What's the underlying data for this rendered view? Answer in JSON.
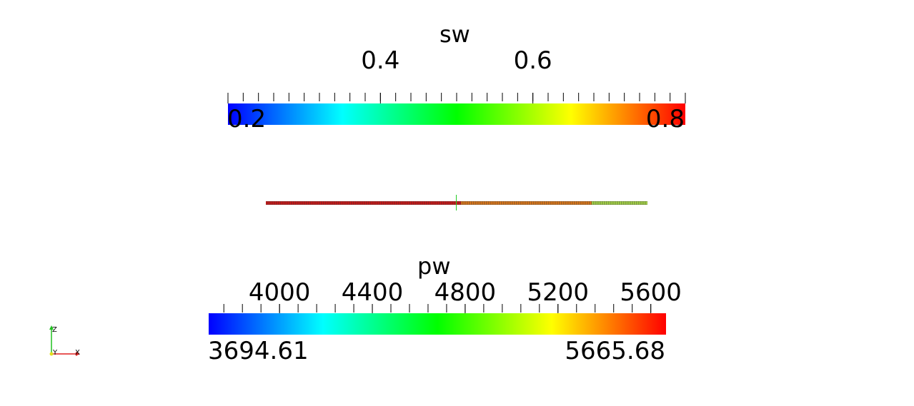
{
  "sw_legend": {
    "title": "sw",
    "tick_labels": [
      "0.4",
      "0.6"
    ],
    "range_min": "0.2",
    "range_max": "0.8",
    "colormap": [
      "#0000ff",
      "#00ffff",
      "#00ff00",
      "#ffff00",
      "#ff0000"
    ]
  },
  "pw_legend": {
    "title": "pw",
    "tick_labels": [
      "4000",
      "4400",
      "4800",
      "5200",
      "5600"
    ],
    "range_min": "3694.61",
    "range_max": "5665.68",
    "colormap": [
      "#0000ff",
      "#00ffff",
      "#00ff00",
      "#ffff00",
      "#ff0000"
    ]
  },
  "orientation_axes": {
    "z_label": "Z",
    "y_label": "Y",
    "x_label": "X",
    "x_color": "#e02020",
    "y_color": "#e0e020",
    "z_color": "#20c020"
  },
  "mesh": {
    "left_color": "#cc1a1a",
    "mid_color": "#e07b1c",
    "right_color": "#a8d84a"
  }
}
